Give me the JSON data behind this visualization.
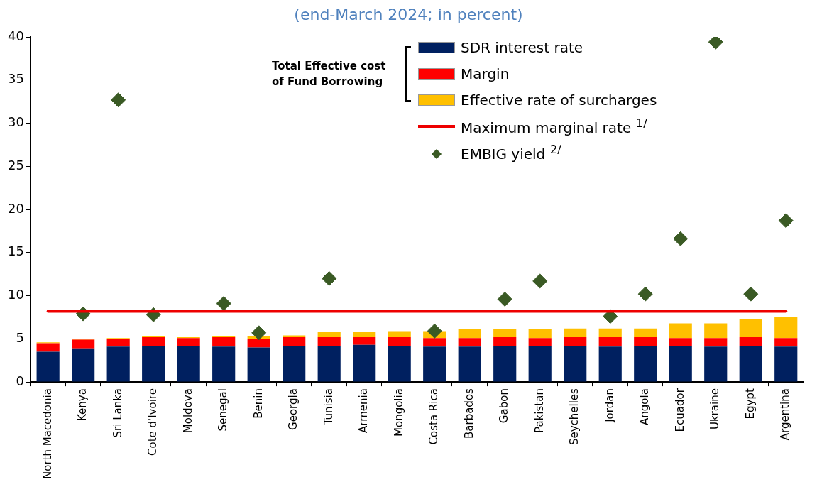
{
  "chart_data": {
    "type": "bar",
    "subtitle": "(end-March 2024; in percent)",
    "stacked": true,
    "categories": [
      "North Macedonia",
      "Kenya",
      "Sri Lanka",
      "Cote d'Ivoire",
      "Moldova",
      "Senegal",
      "Benin",
      "Georgia",
      "Tunisia",
      "Armenia",
      "Mongolia",
      "Costa Rica",
      "Barbados",
      "Gabon",
      "Pakistan",
      "Seychelles",
      "Jordan",
      "Angola",
      "Ecuador",
      "Ukraine",
      "Egypt",
      "Argentina"
    ],
    "series": [
      {
        "name": "SDR interest rate",
        "color": "#002060",
        "values": [
          3.5,
          3.9,
          4.1,
          4.2,
          4.2,
          4.1,
          4.0,
          4.2,
          4.2,
          4.3,
          4.2,
          4.1,
          4.1,
          4.2,
          4.2,
          4.2,
          4.1,
          4.2,
          4.2,
          4.1,
          4.2,
          4.1
        ]
      },
      {
        "name": "Margin",
        "color": "#ff0000",
        "values": [
          1.0,
          1.0,
          0.9,
          1.0,
          0.9,
          1.1,
          1.0,
          1.0,
          1.0,
          0.9,
          1.0,
          1.0,
          1.0,
          1.0,
          0.9,
          1.0,
          1.1,
          1.0,
          0.9,
          1.0,
          1.0,
          1.0
        ]
      },
      {
        "name": "Effective rate of surcharges",
        "color": "#ffc000",
        "values": [
          0.1,
          0.1,
          0.1,
          0.1,
          0.1,
          0.1,
          0.3,
          0.2,
          0.6,
          0.6,
          0.7,
          0.8,
          1.0,
          0.9,
          1.0,
          1.0,
          1.0,
          1.0,
          1.7,
          1.7,
          2.1,
          2.4
        ]
      },
      {
        "name": "Maximum marginal rate $^{1/}$",
        "type": "line",
        "color": "#ee0000",
        "marker": "none",
        "values": [
          8.2,
          8.2,
          8.2,
          8.2,
          8.2,
          8.2,
          8.2,
          8.2,
          8.2,
          8.2,
          8.2,
          8.2,
          8.2,
          8.2,
          8.2,
          8.2,
          8.2,
          8.2,
          8.2,
          8.2,
          8.2,
          8.2
        ]
      },
      {
        "name": "EMBIG yield $^{2/}$",
        "type": "scatter",
        "color": "#3a5a24",
        "marker": "diamond",
        "values": [
          null,
          7.9,
          32.7,
          7.8,
          null,
          9.1,
          5.7,
          null,
          12.0,
          null,
          null,
          5.9,
          null,
          9.6,
          11.7,
          null,
          7.6,
          10.2,
          16.6,
          39.4,
          10.2,
          18.7
        ]
      }
    ],
    "legend_title": "Total Effective cost of Fund Borrowing",
    "legend": "top",
    "ylim": [
      0,
      40
    ],
    "yticks": [
      0,
      5,
      10,
      15,
      20,
      25,
      30,
      35,
      40
    ],
    "grid": false
  }
}
